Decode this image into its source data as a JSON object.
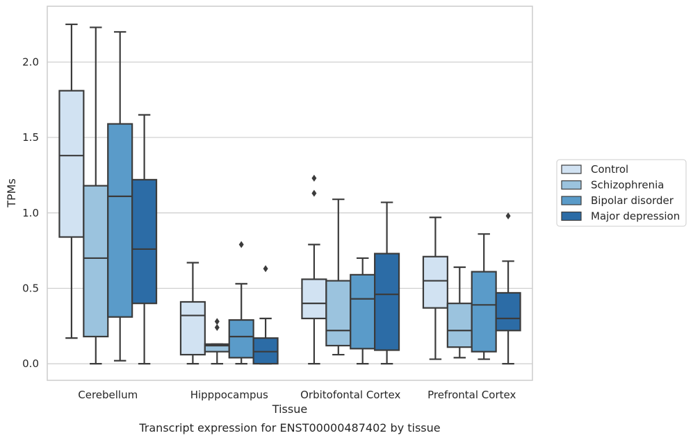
{
  "chart_data": {
    "type": "boxplot",
    "xlabel": "Tissue",
    "ylabel": "TPMs",
    "caption": "Transcript expression for ENST00000487402 by tissue",
    "ylim": [
      -0.11,
      2.37
    ],
    "yticks": [
      "0.0",
      "0.5",
      "1.0",
      "1.5",
      "2.0"
    ],
    "grid": "horizontal",
    "legend_position": "right",
    "categories": [
      "Cerebellum",
      "Hipppocampus",
      "Orbitofontal Cortex",
      "Prefrontal Cortex"
    ],
    "series": [
      {
        "name": "Control",
        "color": "#d1e2f2",
        "boxes": [
          {
            "whislo": 0.17,
            "q1": 0.84,
            "med": 1.38,
            "q3": 1.81,
            "whishi": 2.25,
            "fliers": []
          },
          {
            "whislo": 0.0,
            "q1": 0.06,
            "med": 0.32,
            "q3": 0.41,
            "whishi": 0.67,
            "fliers": []
          },
          {
            "whislo": 0.0,
            "q1": 0.3,
            "med": 0.4,
            "q3": 0.56,
            "whishi": 0.79,
            "fliers": [
              1.13,
              1.23
            ]
          },
          {
            "whislo": 0.03,
            "q1": 0.37,
            "med": 0.55,
            "q3": 0.71,
            "whishi": 0.97,
            "fliers": []
          }
        ]
      },
      {
        "name": "Schizophrenia",
        "color": "#9bc3de",
        "boxes": [
          {
            "whislo": 0.0,
            "q1": 0.18,
            "med": 0.7,
            "q3": 1.18,
            "whishi": 2.23,
            "fliers": []
          },
          {
            "whislo": 0.0,
            "q1": 0.08,
            "med": 0.12,
            "q3": 0.13,
            "whishi": 0.13,
            "fliers": [
              0.24,
              0.28
            ]
          },
          {
            "whislo": 0.06,
            "q1": 0.12,
            "med": 0.22,
            "q3": 0.55,
            "whishi": 1.09,
            "fliers": []
          },
          {
            "whislo": 0.04,
            "q1": 0.11,
            "med": 0.22,
            "q3": 0.4,
            "whishi": 0.64,
            "fliers": []
          }
        ]
      },
      {
        "name": "Bipolar disorder",
        "color": "#5a9bc9",
        "boxes": [
          {
            "whislo": 0.02,
            "q1": 0.31,
            "med": 1.11,
            "q3": 1.59,
            "whishi": 2.2,
            "fliers": []
          },
          {
            "whislo": 0.0,
            "q1": 0.04,
            "med": 0.18,
            "q3": 0.29,
            "whishi": 0.53,
            "fliers": [
              0.79
            ]
          },
          {
            "whislo": 0.0,
            "q1": 0.1,
            "med": 0.43,
            "q3": 0.59,
            "whishi": 0.7,
            "fliers": []
          },
          {
            "whislo": 0.03,
            "q1": 0.08,
            "med": 0.39,
            "q3": 0.61,
            "whishi": 0.86,
            "fliers": []
          }
        ]
      },
      {
        "name": "Major depression",
        "color": "#2c6ca6",
        "boxes": [
          {
            "whislo": 0.0,
            "q1": 0.4,
            "med": 0.76,
            "q3": 1.22,
            "whishi": 1.65,
            "fliers": []
          },
          {
            "whislo": 0.0,
            "q1": 0.0,
            "med": 0.08,
            "q3": 0.17,
            "whishi": 0.3,
            "fliers": [
              0.63
            ]
          },
          {
            "whislo": 0.0,
            "q1": 0.09,
            "med": 0.46,
            "q3": 0.73,
            "whishi": 1.07,
            "fliers": []
          },
          {
            "whislo": 0.0,
            "q1": 0.22,
            "med": 0.3,
            "q3": 0.47,
            "whishi": 0.68,
            "fliers": [
              0.98
            ]
          }
        ]
      }
    ]
  }
}
